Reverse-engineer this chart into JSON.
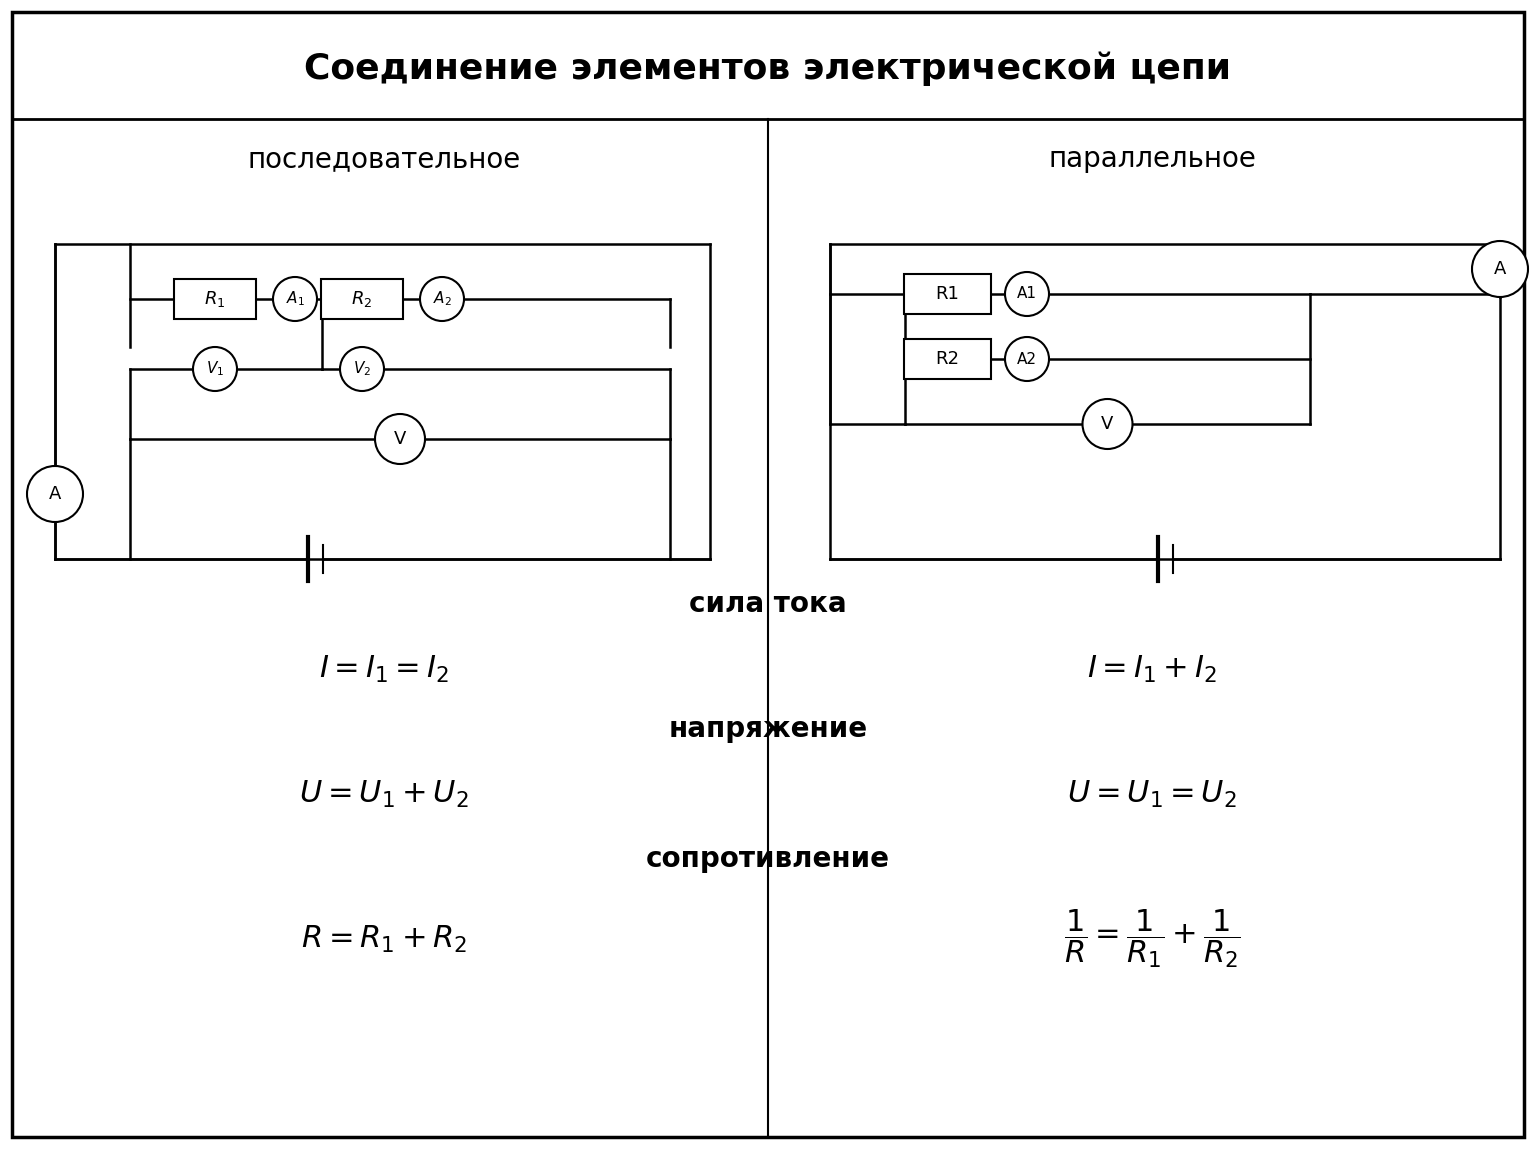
{
  "title": "Соединение элементов электрической цепи",
  "subtitle_left": "последовательное",
  "subtitle_right": "параллельное",
  "label_current": "сила тока",
  "label_voltage": "напряжение",
  "label_resistance": "сопротивление",
  "bg_color": "#ffffff",
  "title_fontsize": 26,
  "subtitle_fontsize": 20,
  "label_fontsize": 20,
  "formula_fontsize": 22
}
